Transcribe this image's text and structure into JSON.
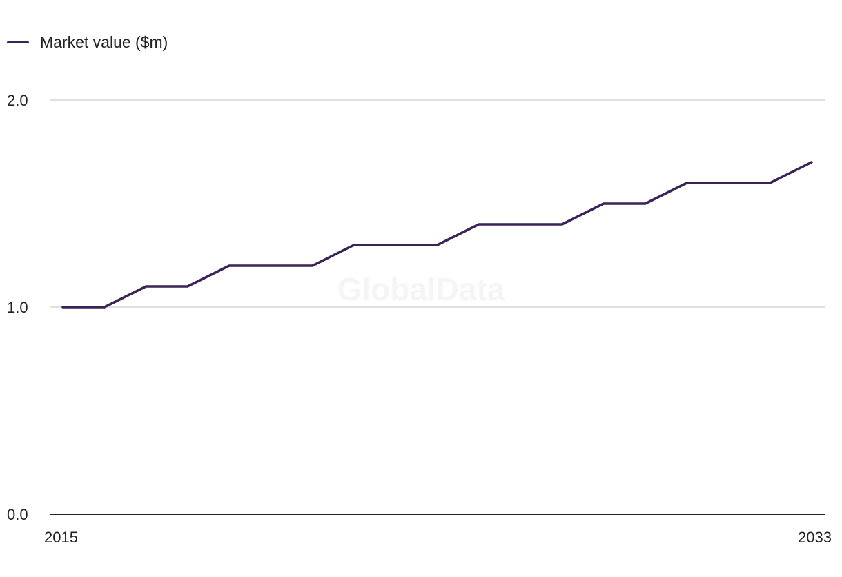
{
  "chart_data": {
    "type": "line",
    "title": "",
    "xlabel": "",
    "ylabel": "",
    "x": [
      2015,
      2016,
      2017,
      2018,
      2019,
      2020,
      2021,
      2022,
      2023,
      2024,
      2025,
      2026,
      2027,
      2028,
      2029,
      2030,
      2031,
      2032,
      2033
    ],
    "series": [
      {
        "name": "Market value ($m)",
        "color": "#3a2356",
        "values": [
          1.0,
          1.0,
          1.1,
          1.1,
          1.2,
          1.2,
          1.2,
          1.3,
          1.3,
          1.3,
          1.4,
          1.4,
          1.4,
          1.5,
          1.5,
          1.6,
          1.6,
          1.6,
          1.7
        ]
      }
    ],
    "ylim": [
      0,
      2.0
    ],
    "y_ticks": [
      "0.0",
      "1.0",
      "2.0"
    ],
    "x_tick_labels": [
      "2015",
      "2033"
    ],
    "grid": true,
    "legend_position": "top-left",
    "watermark": "GlobalData"
  }
}
